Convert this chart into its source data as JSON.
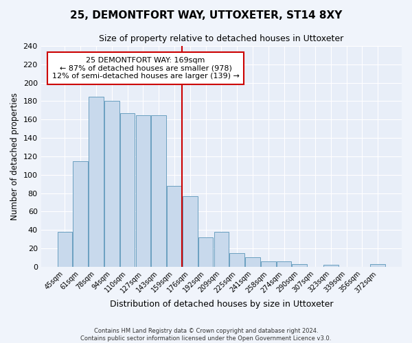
{
  "title": "25, DEMONTFORT WAY, UTTOXETER, ST14 8XY",
  "subtitle": "Size of property relative to detached houses in Uttoxeter",
  "xlabel": "Distribution of detached houses by size in Uttoxeter",
  "ylabel": "Number of detached properties",
  "bar_labels": [
    "45sqm",
    "61sqm",
    "78sqm",
    "94sqm",
    "110sqm",
    "127sqm",
    "143sqm",
    "159sqm",
    "176sqm",
    "192sqm",
    "209sqm",
    "225sqm",
    "241sqm",
    "258sqm",
    "274sqm",
    "290sqm",
    "307sqm",
    "323sqm",
    "339sqm",
    "356sqm",
    "372sqm"
  ],
  "bar_heights": [
    38,
    115,
    185,
    180,
    167,
    165,
    165,
    88,
    77,
    32,
    38,
    15,
    10,
    6,
    6,
    3,
    0,
    2,
    0,
    0,
    3
  ],
  "bar_color": "#c8d9ec",
  "bar_edge_color": "#6a9fc0",
  "background_color": "#e8eef8",
  "grid_color": "#ffffff",
  "vline_x_index": 8,
  "vline_color": "#cc0000",
  "annotation_title": "25 DEMONTFORT WAY: 169sqm",
  "annotation_line1": "← 87% of detached houses are smaller (978)",
  "annotation_line2": "12% of semi-detached houses are larger (139) →",
  "annotation_box_color": "#ffffff",
  "annotation_box_edge_color": "#cc0000",
  "ylim": [
    0,
    240
  ],
  "yticks": [
    0,
    20,
    40,
    60,
    80,
    100,
    120,
    140,
    160,
    180,
    200,
    220,
    240
  ],
  "footer_line1": "Contains HM Land Registry data © Crown copyright and database right 2024.",
  "footer_line2": "Contains public sector information licensed under the Open Government Licence v3.0.",
  "fig_width": 6.0,
  "fig_height": 5.0,
  "fig_dpi": 100
}
